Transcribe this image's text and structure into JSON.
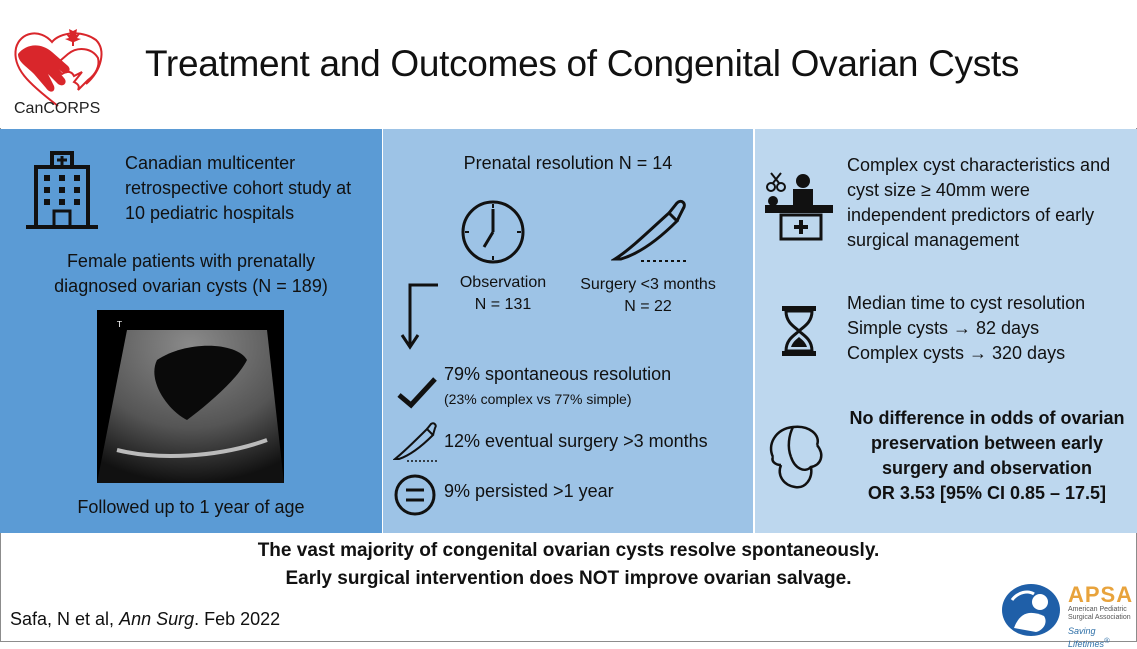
{
  "header": {
    "title": "Treatment and Outcomes of Congenital Ovarian Cysts",
    "logo_text": "CanCORPS"
  },
  "panel1": {
    "study": "Canadian multicenter retrospective cohort study at 10 pediatric hospitals",
    "patients": "Female patients with prenatally diagnosed ovarian cysts (N = 189)",
    "followup": "Followed up to 1 year of age"
  },
  "panel2": {
    "prenatal": "Prenatal resolution N = 14",
    "observation_label": "Observation",
    "observation_n": "N = 131",
    "surgery_label": "Surgery <3 months",
    "surgery_n": "N = 22",
    "spontaneous": "79% spontaneous resolution",
    "spontaneous_detail": "(23% complex vs 77% simple)",
    "eventual_surgery": "12% eventual surgery >3 months",
    "persisted": "9% persisted >1 year"
  },
  "panel3": {
    "predictors": "Complex cyst characteristics and  cyst size ≥ 40mm were independent predictors of early surgical management",
    "median_title": "Median time to cyst resolution",
    "simple": "Simple cysts → 82 days",
    "complex": "Complex cysts → 320 days",
    "no_diff": "No difference in odds of ovarian preservation between early surgery and observation",
    "odds": "OR 3.53 [95% CI 0.85 – 17.5]"
  },
  "footer": {
    "line1": "The vast majority of congenital ovarian cysts resolve spontaneously.",
    "line2": "Early surgical intervention does NOT improve ovarian salvage.",
    "cite_authors": "Safa, N et al, ",
    "cite_journal": "Ann Surg",
    "cite_date": ". Feb 2022",
    "apsa": "APSA",
    "apsa_full1": "American Pediatric",
    "apsa_full2": "Surgical Association",
    "apsa_tagline": "Saving Lifetimes",
    "apsa_tm": "®"
  },
  "ultrasound_marker": "T",
  "colors": {
    "panel1": "#5b9bd5",
    "panel2": "#9dc3e6",
    "panel3": "#bdd7ee",
    "logo_red": "#d9262b"
  }
}
